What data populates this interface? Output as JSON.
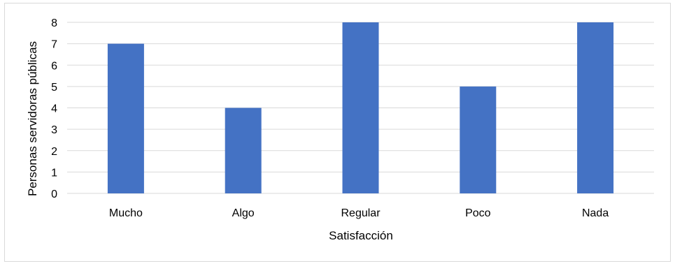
{
  "chart_data": {
    "type": "bar",
    "categories": [
      "Mucho",
      "Algo",
      "Regular",
      "Poco",
      "Nada"
    ],
    "values": [
      7,
      4,
      8,
      5,
      8
    ],
    "xlabel": "Satisfacción",
    "ylabel": "Personas servidoras públicas",
    "ylim": [
      0,
      8
    ],
    "yticks": [
      0,
      1,
      2,
      3,
      4,
      5,
      6,
      7,
      8
    ],
    "grid": true,
    "bar_color": "#4472c4",
    "grid_color": "#d9d9d9"
  }
}
